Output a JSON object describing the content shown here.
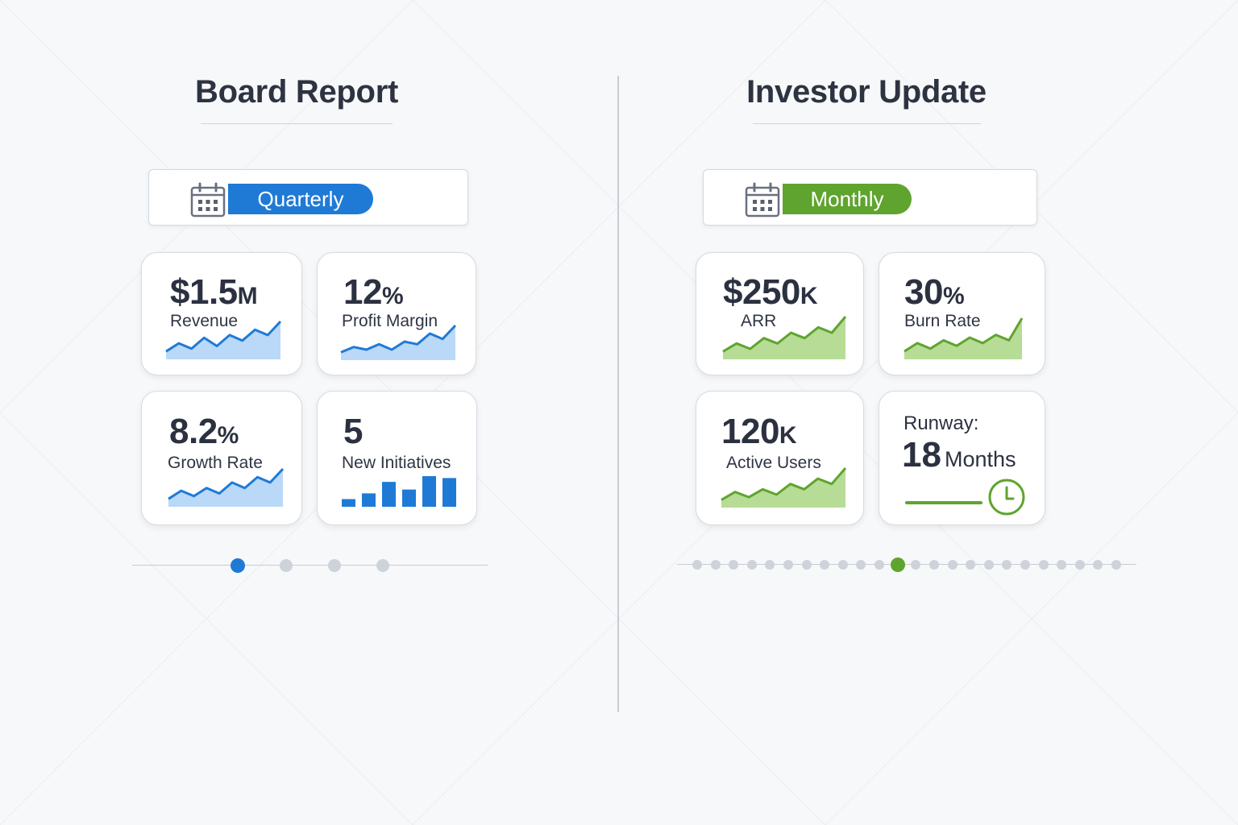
{
  "colors": {
    "blue": "#1f7ad6",
    "blue_fill": "#bad8f7",
    "green": "#5fa42e",
    "green_fill": "#b7dc96",
    "dot_inactive": "#cdd2db"
  },
  "left_panel": {
    "title": "Board Report",
    "period": {
      "icon": "calendar-icon",
      "label": "Quarterly"
    },
    "cards": [
      {
        "value": "$1.5",
        "unit": "M",
        "label": "Revenue",
        "chart": "area",
        "series": [
          2,
          5,
          3,
          7,
          4,
          8,
          6,
          10,
          8,
          13
        ]
      },
      {
        "value": "12",
        "unit": "%",
        "label": "Profit Margin",
        "chart": "area",
        "series": [
          2,
          4,
          3,
          5,
          3,
          6,
          5,
          9,
          7,
          12
        ]
      },
      {
        "value": "8.2",
        "unit": "%",
        "label": "Growth Rate",
        "chart": "area",
        "series": [
          2,
          5,
          3,
          6,
          4,
          8,
          6,
          10,
          8,
          13
        ]
      },
      {
        "value": "5",
        "unit": "",
        "label": "New Initiatives",
        "chart": "bar",
        "series": [
          2,
          3.5,
          6.5,
          4.5,
          8,
          7.5
        ]
      }
    ],
    "pager": {
      "count": 4,
      "active": 0
    }
  },
  "right_panel": {
    "title": "Investor Update",
    "period": {
      "icon": "calendar-icon",
      "label": "Monthly"
    },
    "cards": [
      {
        "value": "$250",
        "unit": "K",
        "label": "ARR",
        "chart": "area",
        "series": [
          2,
          5,
          3,
          7,
          5,
          9,
          7,
          11,
          9,
          15
        ]
      },
      {
        "value": "30",
        "unit": "%",
        "label": "Burn Rate",
        "chart": "area",
        "series": [
          2,
          5,
          3,
          6,
          4,
          7,
          5,
          8,
          6,
          14
        ]
      },
      {
        "value": "120",
        "unit": "K",
        "label": "Active Users",
        "chart": "area",
        "series": [
          2,
          5,
          3,
          6,
          4,
          8,
          6,
          10,
          8,
          14
        ]
      }
    ],
    "runway": {
      "label": "Runway:",
      "value": "18",
      "unit": "Months",
      "icon": "clock-icon"
    },
    "pager": {
      "count": 24,
      "active": 11
    }
  }
}
